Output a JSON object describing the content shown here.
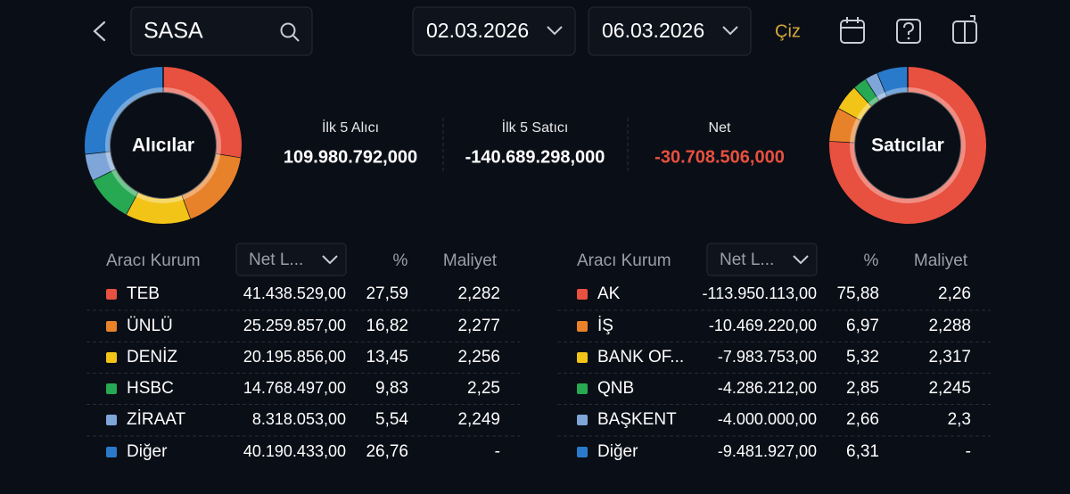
{
  "header": {
    "search": "SASA",
    "date_start": "02.03.2026",
    "date_end": "06.03.2026",
    "draw_button": "Çiz"
  },
  "summary": [
    {
      "label": "İlk 5 Alıcı",
      "value": "109.980.792,000"
    },
    {
      "label": "İlk 5 Satıcı",
      "value": "-140.689.298,000"
    },
    {
      "label": "Net",
      "value": "-30.708.506,000",
      "color": "#e8503f"
    }
  ],
  "buyers": {
    "title": "Alıcılar",
    "columns": [
      "Aracı Kurum",
      "Net L...",
      "%",
      "Maliyet"
    ],
    "rows": [
      {
        "name": "TEB",
        "color": "#e8503f",
        "net": "41.438.529,00",
        "pct": {
          "value": 27.59,
          "label": "27,59"
        },
        "cost": "2,282"
      },
      {
        "name": "ÜNLÜ",
        "color": "#e8822a",
        "net": "25.259.857,00",
        "pct": {
          "value": 16.82,
          "label": "16,82"
        },
        "cost": "2,277"
      },
      {
        "name": "DENİZ",
        "color": "#f2c418",
        "net": "20.195.856,00",
        "pct": {
          "value": 13.45,
          "label": "13,45"
        },
        "cost": "2,256"
      },
      {
        "name": "HSBC",
        "color": "#27a853",
        "net": "14.768.497,00",
        "pct": {
          "value": 9.83,
          "label": "9,83"
        },
        "cost": "2,25"
      },
      {
        "name": "ZİRAAT",
        "color": "#7ea6d8",
        "net": "8.318.053,00",
        "pct": {
          "value": 5.54,
          "label": "5,54"
        },
        "cost": "2,249"
      },
      {
        "name": "Diğer",
        "color": "#2a7acb",
        "net": "40.190.433,00",
        "pct": {
          "value": 26.76,
          "label": "26,76"
        },
        "cost": "-"
      }
    ]
  },
  "sellers": {
    "title": "Satıcılar",
    "columns": [
      "Aracı Kurum",
      "Net L...",
      "%",
      "Maliyet"
    ],
    "rows": [
      {
        "name": "AK",
        "color": "#e8503f",
        "net": "-113.950.113,00",
        "pct": {
          "value": 75.88,
          "label": "75,88"
        },
        "cost": "2,26"
      },
      {
        "name": "İŞ",
        "color": "#e8822a",
        "net": "-10.469.220,00",
        "pct": {
          "value": 6.97,
          "label": "6,97"
        },
        "cost": "2,288"
      },
      {
        "name": "BANK OF...",
        "color": "#f2c418",
        "net": "-7.983.753,00",
        "pct": {
          "value": 5.32,
          "label": "5,32"
        },
        "cost": "2,317"
      },
      {
        "name": "QNB",
        "color": "#27a853",
        "net": "-4.286.212,00",
        "pct": {
          "value": 2.85,
          "label": "2,85"
        },
        "cost": "2,245"
      },
      {
        "name": "BAŞKENT",
        "color": "#7ea6d8",
        "net": "-4.000.000,00",
        "pct": {
          "value": 2.66,
          "label": "2,66"
        },
        "cost": "2,3"
      },
      {
        "name": "Diğer",
        "color": "#2a7acb",
        "net": "-9.481.927,00",
        "pct": {
          "value": 6.31,
          "label": "6,31"
        },
        "cost": "-"
      }
    ]
  }
}
